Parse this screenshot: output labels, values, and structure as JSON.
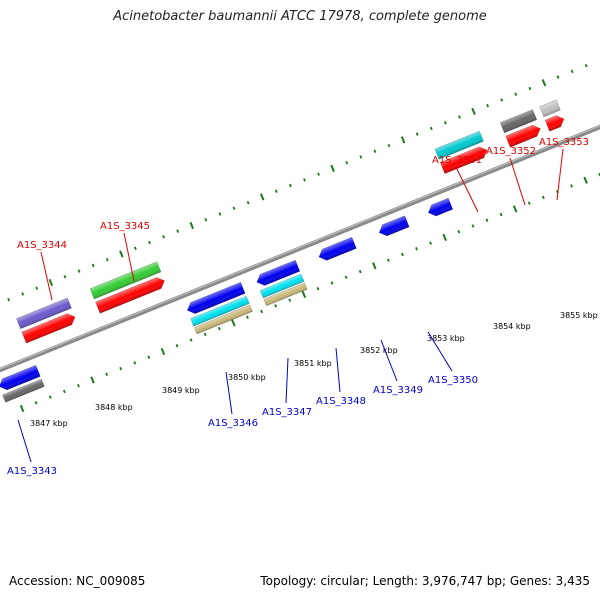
{
  "title": "Acinetobacter baumannii ATCC 17978, complete genome",
  "accession": "Accession: NC_009085",
  "summary": "Topology: circular; Length: 3,976,747 bp; Genes: 3,435",
  "colors": {
    "forward_label": "#e00000",
    "reverse_label": "#0000cc",
    "backbone": "#8a8a8a",
    "ticks": "#1e7a1e"
  },
  "kbp_labels": [
    "3847 kbp",
    "3848 kbp",
    "3849 kbp",
    "3850 kbp",
    "3851 kbp",
    "3852 kbp",
    "3853 kbp",
    "3854 kbp",
    "3855 kbp"
  ],
  "forward_genes": [
    {
      "label": "A1S_3344",
      "colors": [
        "#6a5acd",
        "#ff0000"
      ]
    },
    {
      "label": "A1S_3345",
      "colors": [
        "#33cc33",
        "#ff0000"
      ]
    },
    {
      "label": "A1S_3351",
      "colors": [
        "#00c8d0",
        "#ff0000"
      ]
    },
    {
      "label": "A1S_3352",
      "colors": [
        "#666666",
        "#ff0000"
      ]
    },
    {
      "label": "A1S_3353",
      "colors": [
        "#c0c0c0",
        "#ff0000"
      ]
    }
  ],
  "reverse_genes": [
    {
      "label": "A1S_3343",
      "colors": [
        "#0000ee",
        "#666666"
      ]
    },
    {
      "label": "A1S_3346",
      "colors": [
        "#0000ee",
        "#00e0f0",
        "#c8b878"
      ]
    },
    {
      "label": "A1S_3347",
      "colors": [
        "#0000ee",
        "#00e0f0",
        "#c8b878"
      ]
    },
    {
      "label": "A1S_3348",
      "colors": [
        "#0000ee"
      ]
    },
    {
      "label": "A1S_3349",
      "colors": [
        "#0000ee"
      ]
    },
    {
      "label": "A1S_3350",
      "colors": [
        "#0000ee"
      ]
    }
  ]
}
